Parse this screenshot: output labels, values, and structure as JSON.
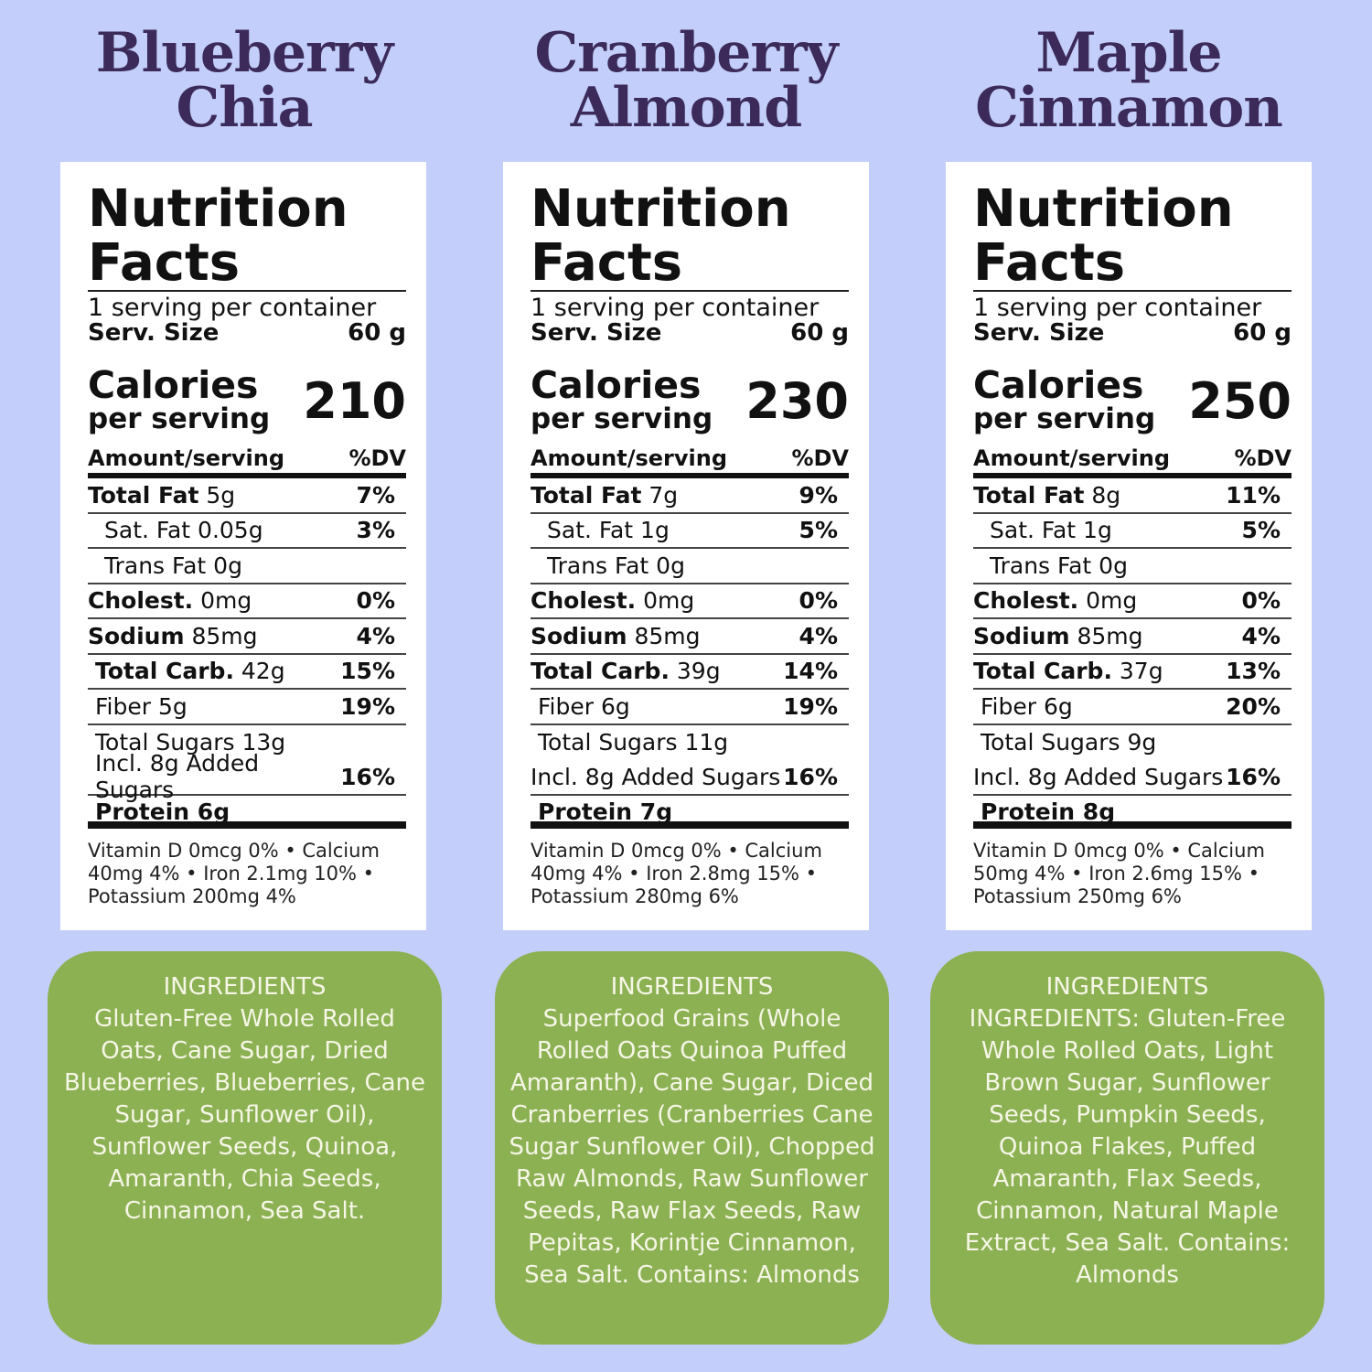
{
  "colors": {
    "background": "#c3cffa",
    "title": "#3b2a5a",
    "ingredients_box": "#8cb153"
  },
  "products": [
    {
      "title_line1": "Blueberry",
      "title_line2": "Chia",
      "label": {
        "heading1": "Nutrition",
        "heading2": "Facts",
        "servings": "1 serving per container",
        "serv_size_label": "Serv. Size",
        "serv_size": "60 g",
        "calories_label1": "Calories",
        "calories_label2": "per serving",
        "calories": "210",
        "amount_header": "Amount/serving",
        "dv_header": "%DV",
        "rows": [
          {
            "bold": "Total Fat",
            "text": " 5g",
            "dv": "7%",
            "indent": 0
          },
          {
            "bold": "",
            "text": "Sat. Fat 0.05g",
            "dv": "3%",
            "indent": 2
          },
          {
            "bold": "",
            "text": "Trans Fat 0g",
            "dv": "",
            "indent": 2
          },
          {
            "bold": "Cholest.",
            "text": " 0mg",
            "dv": "0%",
            "indent": 0
          },
          {
            "bold": "Sodium",
            "text": " 85mg",
            "dv": "4%",
            "indent": 0
          },
          {
            "bold": "Total Carb.",
            "text": " 42g",
            "dv": "15%",
            "indent": 1
          },
          {
            "bold": "",
            "text": "Fiber 5g",
            "dv": "19%",
            "indent": 1
          },
          {
            "bold": "",
            "text": "Total Sugars 13g",
            "dv": "",
            "indent": 1,
            "noline": true
          },
          {
            "bold": "",
            "text": "Incl. 8g Added Sugars",
            "dv": "16%",
            "indent": 1
          }
        ],
        "protein": "Protein 6g",
        "vitamins": "Vitamin D 0mcg 0% • Calcium 40mg 4% • Iron 2.1mg 10% • Potassium 200mg 4%"
      },
      "ingredients_title": "INGREDIENTS",
      "ingredients": "Gluten-Free Whole Rolled Oats, Cane Sugar, Dried Blueberries, Blueberries, Cane Sugar, Sunflower Oil), Sunflower Seeds, Quinoa, Amaranth, Chia Seeds, Cinnamon, Sea Salt."
    },
    {
      "title_line1": "Cranberry",
      "title_line2": "Almond",
      "label": {
        "heading1": "Nutrition",
        "heading2": "Facts",
        "servings": "1 serving per container",
        "serv_size_label": "Serv. Size",
        "serv_size": "60 g",
        "calories_label1": "Calories",
        "calories_label2": "per serving",
        "calories": "230",
        "amount_header": "Amount/serving",
        "dv_header": "%DV",
        "rows": [
          {
            "bold": "Total Fat",
            "text": " 7g",
            "dv": "9%",
            "indent": 0
          },
          {
            "bold": "",
            "text": "Sat. Fat 1g",
            "dv": "5%",
            "indent": 2
          },
          {
            "bold": "",
            "text": "Trans Fat 0g",
            "dv": "",
            "indent": 2
          },
          {
            "bold": "Cholest.",
            "text": " 0mg",
            "dv": "0%",
            "indent": 0
          },
          {
            "bold": "Sodium",
            "text": " 85mg",
            "dv": "4%",
            "indent": 0
          },
          {
            "bold": "Total Carb.",
            "text": " 39g",
            "dv": "14%",
            "indent": 0
          },
          {
            "bold": "",
            "text": "Fiber 6g",
            "dv": "19%",
            "indent": 1
          },
          {
            "bold": "",
            "text": "Total Sugars 11g",
            "dv": "",
            "indent": 1,
            "noline": true
          },
          {
            "bold": "",
            "text": "Incl. 8g Added Sugars",
            "dv": "16%",
            "indent": 0
          }
        ],
        "protein": "Protein 7g",
        "vitamins": "Vitamin D 0mcg 0% • Calcium 40mg 4% • Iron 2.8mg 15% • Potassium 280mg 6%"
      },
      "ingredients_title": "INGREDIENTS",
      "ingredients": "Superfood Grains (Whole Rolled Oats Quinoa Puffed Amaranth), Cane Sugar, Diced Cranberries (Cranberries Cane Sugar Sunflower Oil), Chopped Raw Almonds, Raw Sunflower Seeds, Raw Flax Seeds, Raw Pepitas, Korintje Cinnamon, Sea Salt. Contains: Almonds"
    },
    {
      "title_line1": "Maple",
      "title_line2": "Cinnamon",
      "label": {
        "heading1": "Nutrition",
        "heading2": "Facts",
        "servings": "1 serving per container",
        "serv_size_label": "Serv. Size",
        "serv_size": "60 g",
        "calories_label1": "Calories",
        "calories_label2": "per serving",
        "calories": "250",
        "amount_header": "Amount/serving",
        "dv_header": "%DV",
        "rows": [
          {
            "bold": "Total Fat",
            "text": " 8g",
            "dv": "11%",
            "indent": 0
          },
          {
            "bold": "",
            "text": "Sat. Fat 1g",
            "dv": "5%",
            "indent": 2
          },
          {
            "bold": "",
            "text": "Trans Fat 0g",
            "dv": "",
            "indent": 2
          },
          {
            "bold": "Cholest.",
            "text": " 0mg",
            "dv": "0%",
            "indent": 0
          },
          {
            "bold": "Sodium",
            "text": " 85mg",
            "dv": "4%",
            "indent": 0
          },
          {
            "bold": "Total Carb.",
            "text": " 37g",
            "dv": "13%",
            "indent": 0
          },
          {
            "bold": "",
            "text": "Fiber 6g",
            "dv": "20%",
            "indent": 1
          },
          {
            "bold": "",
            "text": "Total Sugars 9g",
            "dv": "",
            "indent": 1,
            "noline": true
          },
          {
            "bold": "",
            "text": "Incl. 8g Added Sugars",
            "dv": "16%",
            "indent": 0
          }
        ],
        "protein": "Protein 8g",
        "vitamins": "Vitamin D 0mcg 0% • Calcium 50mg 4% • Iron 2.6mg 15% • Potassium 250mg 6%"
      },
      "ingredients_title": "INGREDIENTS",
      "ingredients": "INGREDIENTS: Gluten-Free Whole Rolled Oats, Light Brown Sugar, Sunflower Seeds, Pumpkin Seeds, Quinoa Flakes, Puffed Amaranth, Flax Seeds, Cinnamon, Natural Maple Extract, Sea Salt. Contains: Almonds"
    }
  ]
}
